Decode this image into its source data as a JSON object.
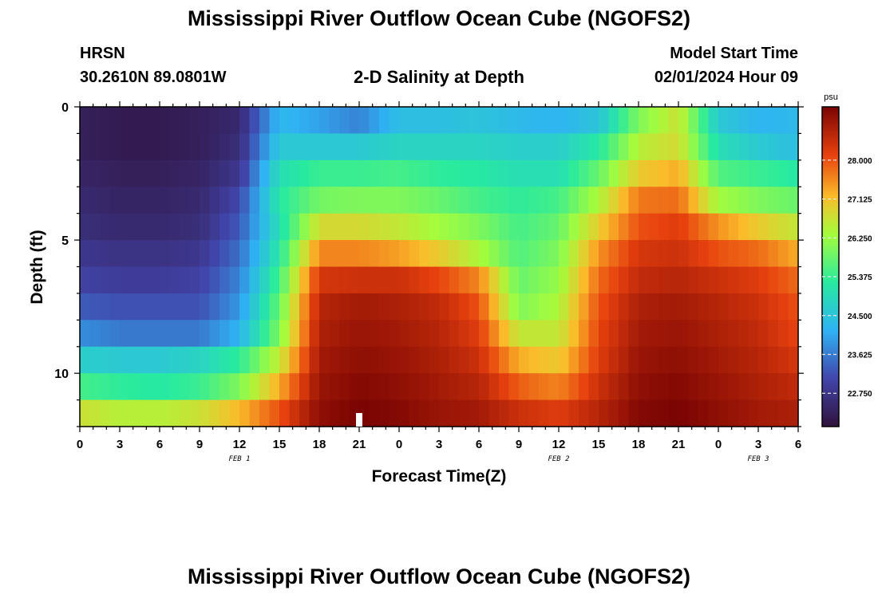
{
  "title": "Mississippi River Outflow Ocean Cube (NGOFS2)",
  "title_repeat": "Mississippi River Outflow Ocean Cube (NGOFS2)",
  "station": {
    "name": "HRSN",
    "coords": "30.2610N  89.0801W"
  },
  "subtitle": "2-D Salinity at Depth",
  "model_start": {
    "label": "Model Start Time",
    "value": "02/01/2024 Hour 09"
  },
  "chart_data": {
    "type": "heatmap",
    "title": "2-D Salinity at Depth",
    "xlabel": "Forecast Time(Z)",
    "ylabel": "Depth (ft)",
    "x_range_hours": [
      0,
      54
    ],
    "x_ticks": [
      {
        "hour": 0,
        "label": "0"
      },
      {
        "hour": 3,
        "label": "3"
      },
      {
        "hour": 6,
        "label": "6"
      },
      {
        "hour": 9,
        "label": "9"
      },
      {
        "hour": 12,
        "label": "12"
      },
      {
        "hour": 15,
        "label": "15"
      },
      {
        "hour": 18,
        "label": "18"
      },
      {
        "hour": 21,
        "label": "21"
      },
      {
        "hour": 24,
        "label": "0"
      },
      {
        "hour": 27,
        "label": "3"
      },
      {
        "hour": 30,
        "label": "6"
      },
      {
        "hour": 33,
        "label": "9"
      },
      {
        "hour": 36,
        "label": "12"
      },
      {
        "hour": 39,
        "label": "15"
      },
      {
        "hour": 42,
        "label": "18"
      },
      {
        "hour": 45,
        "label": "21"
      },
      {
        "hour": 48,
        "label": "0"
      },
      {
        "hour": 51,
        "label": "3"
      },
      {
        "hour": 54,
        "label": "6"
      }
    ],
    "date_labels": [
      {
        "hour": 12,
        "label": "FEB 1"
      },
      {
        "hour": 36,
        "label": "FEB 2"
      },
      {
        "hour": 51,
        "label": "FEB 3"
      }
    ],
    "y_range_ft": [
      0,
      12
    ],
    "y_ticks": [
      {
        "depth": 0,
        "label": "0"
      },
      {
        "depth": 5,
        "label": "5"
      },
      {
        "depth": 10,
        "label": "10"
      }
    ],
    "depth_levels_ft": [
      0.5,
      1.5,
      2.5,
      3.5,
      4.5,
      5.5,
      6.5,
      7.5,
      8.5,
      9.5,
      10.5,
      11.5
    ],
    "times_hours": [
      0,
      3,
      6,
      9,
      12,
      15,
      18,
      21,
      24,
      27,
      30,
      33,
      36,
      39,
      42,
      45,
      48,
      51,
      54
    ],
    "salinity_psu": [
      [
        22.3,
        22.2,
        22.2,
        22.3,
        22.5,
        24.3,
        24.0,
        23.7,
        24.4,
        24.4,
        24.5,
        24.3,
        24.2,
        24.5,
        26.0,
        26.7,
        24.6,
        24.2,
        24.3
      ],
      [
        22.3,
        22.2,
        22.2,
        22.3,
        22.6,
        24.6,
        24.6,
        24.6,
        24.8,
        24.8,
        24.8,
        24.7,
        24.7,
        25.2,
        26.5,
        26.8,
        25.0,
        24.6,
        24.4
      ],
      [
        22.4,
        22.3,
        22.3,
        22.4,
        22.8,
        25.0,
        25.4,
        25.4,
        25.5,
        25.3,
        25.2,
        25.0,
        25.0,
        25.8,
        27.0,
        27.3,
        25.6,
        25.4,
        25.2
      ],
      [
        22.5,
        22.4,
        22.4,
        22.5,
        23.1,
        25.2,
        25.9,
        26.0,
        26.0,
        25.8,
        25.5,
        25.3,
        25.5,
        26.4,
        27.7,
        27.8,
        26.3,
        26.0,
        25.8
      ],
      [
        22.6,
        22.5,
        22.5,
        22.6,
        23.3,
        25.0,
        26.8,
        26.8,
        26.6,
        26.3,
        26.0,
        25.5,
        25.8,
        27.0,
        28.0,
        28.2,
        27.5,
        27.0,
        26.6
      ],
      [
        22.8,
        22.7,
        22.7,
        22.8,
        23.5,
        25.2,
        27.6,
        27.6,
        27.4,
        27.0,
        26.4,
        25.6,
        26.0,
        27.5,
        28.3,
        28.4,
        28.0,
        27.8,
        27.3
      ],
      [
        23.0,
        22.9,
        22.9,
        23.0,
        23.7,
        25.5,
        28.3,
        28.4,
        28.4,
        28.1,
        27.6,
        25.8,
        26.2,
        27.8,
        28.5,
        28.6,
        28.4,
        28.2,
        27.8
      ],
      [
        23.3,
        23.2,
        23.2,
        23.2,
        23.9,
        25.8,
        28.6,
        28.8,
        28.7,
        28.5,
        28.0,
        26.0,
        26.4,
        28.0,
        28.7,
        28.8,
        28.6,
        28.4,
        28.0
      ],
      [
        23.8,
        23.6,
        23.6,
        23.6,
        24.2,
        26.0,
        28.7,
        28.9,
        28.8,
        28.6,
        28.2,
        26.6,
        26.6,
        28.1,
        28.8,
        28.9,
        28.7,
        28.5,
        28.1
      ],
      [
        24.7,
        24.6,
        24.6,
        24.8,
        25.3,
        26.6,
        28.8,
        29.0,
        28.9,
        28.7,
        28.4,
        27.3,
        27.0,
        28.2,
        28.9,
        29.0,
        28.8,
        28.6,
        28.3
      ],
      [
        25.5,
        25.3,
        25.2,
        25.4,
        26.0,
        27.3,
        28.9,
        29.1,
        29.0,
        28.8,
        28.6,
        27.9,
        27.6,
        28.4,
        29.0,
        29.1,
        28.9,
        28.7,
        28.5
      ],
      [
        26.7,
        26.5,
        26.5,
        26.7,
        27.2,
        28.0,
        29.0,
        29.2,
        29.1,
        28.9,
        28.8,
        28.4,
        28.2,
        28.6,
        29.1,
        29.2,
        29.0,
        28.8,
        28.7
      ]
    ],
    "colorbar": {
      "label": "psu",
      "range": [
        22.0,
        29.2
      ],
      "ticks": [
        "28.000",
        "27.125",
        "26.250",
        "25.375",
        "24.500",
        "23.625",
        "22.750"
      ],
      "tick_values": [
        28.0,
        27.125,
        26.25,
        25.375,
        24.5,
        23.625,
        22.75
      ]
    },
    "marker_hour": 21
  }
}
